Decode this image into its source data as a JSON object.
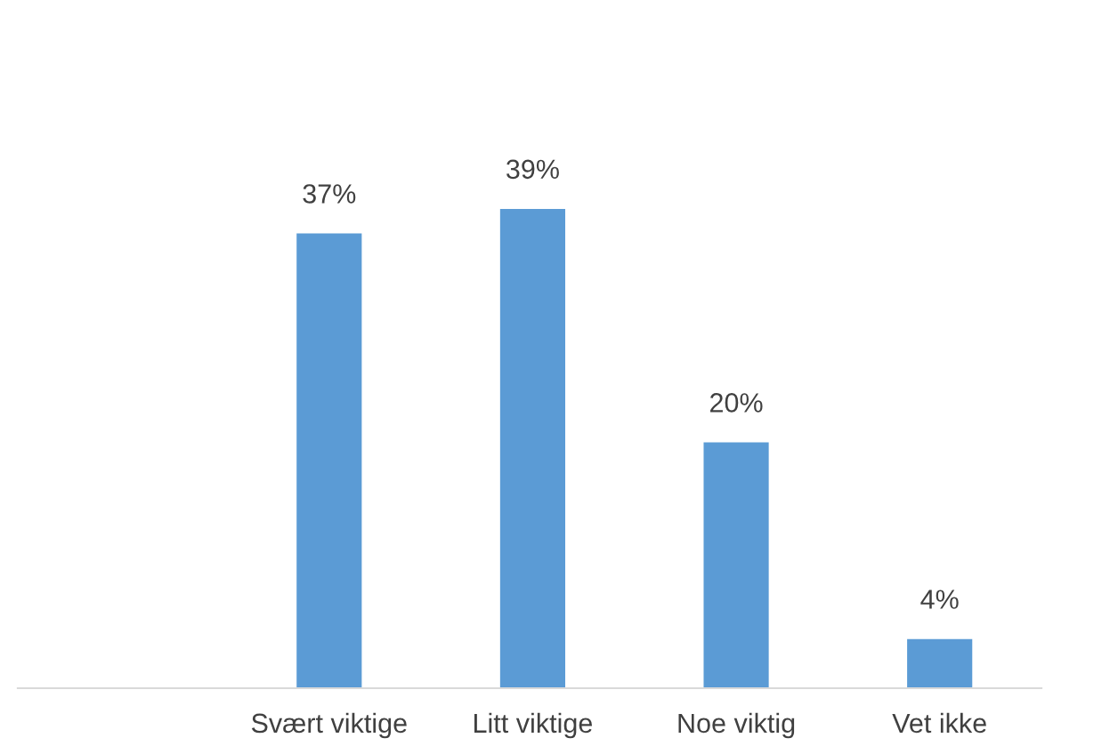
{
  "chart_data": {
    "type": "bar",
    "categories": [
      null,
      "Svært viktige",
      "Litt viktige",
      "Noe viktig",
      "Vet ikke"
    ],
    "values": [
      null,
      37,
      39,
      20,
      4
    ],
    "value_labels": [
      null,
      "37%",
      "39%",
      "20%",
      "4%"
    ],
    "color": "#5b9bd5",
    "tick_labels": "x",
    "grid": false,
    "legend": false
  }
}
